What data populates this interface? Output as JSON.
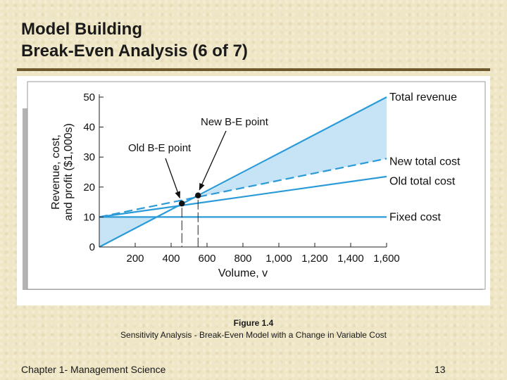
{
  "slide": {
    "title_line1": "Model Building",
    "title_line2": "Break-Even Analysis (6 of 7)",
    "figure_number": "Figure 1.4",
    "figure_caption": "Sensitivity Analysis - Break-Even Model with a Change in Variable Cost",
    "footer_left": "Chapter 1- Management Science",
    "page_number": "13"
  },
  "colors": {
    "line": "#2a9bd8",
    "profit_fill": "#c7e4f7",
    "loss_fill": "#c7e4f7",
    "frame_shadow": "#b3b3b3",
    "background": "#efe6c6"
  },
  "chart_data": {
    "type": "line",
    "xlabel": "Volume, v",
    "ylabel_line1": "Revenue, cost,",
    "ylabel_line2": "and profit ($1,000s)",
    "xlim": [
      0,
      1600
    ],
    "ylim": [
      0,
      50
    ],
    "x_ticks": [
      200,
      400,
      600,
      800,
      1000,
      1200,
      1400,
      1600
    ],
    "x_tick_labels": [
      "200",
      "400",
      "600",
      "800",
      "1,000",
      "1,200",
      "1,400",
      "1,600"
    ],
    "y_ticks": [
      0,
      10,
      20,
      30,
      40,
      50
    ],
    "y_tick_labels": [
      "0",
      "10",
      "20",
      "30",
      "40",
      "50"
    ],
    "grid": false,
    "series": [
      {
        "name": "Total revenue",
        "dash": false,
        "points": [
          [
            0,
            0
          ],
          [
            1600,
            50
          ]
        ]
      },
      {
        "name": "New total cost",
        "dash": true,
        "points": [
          [
            0,
            10
          ],
          [
            1600,
            29.5
          ]
        ]
      },
      {
        "name": "Old total cost",
        "dash": false,
        "points": [
          [
            0,
            10
          ],
          [
            1600,
            23.5
          ]
        ]
      },
      {
        "name": "Fixed cost",
        "dash": false,
        "points": [
          [
            0,
            10
          ],
          [
            1600,
            10
          ]
        ]
      }
    ],
    "annotations": [
      {
        "label": "Old B-E point",
        "x": 460,
        "y": 14.5
      },
      {
        "label": "New B-E point",
        "x": 550,
        "y": 17.2
      }
    ]
  }
}
